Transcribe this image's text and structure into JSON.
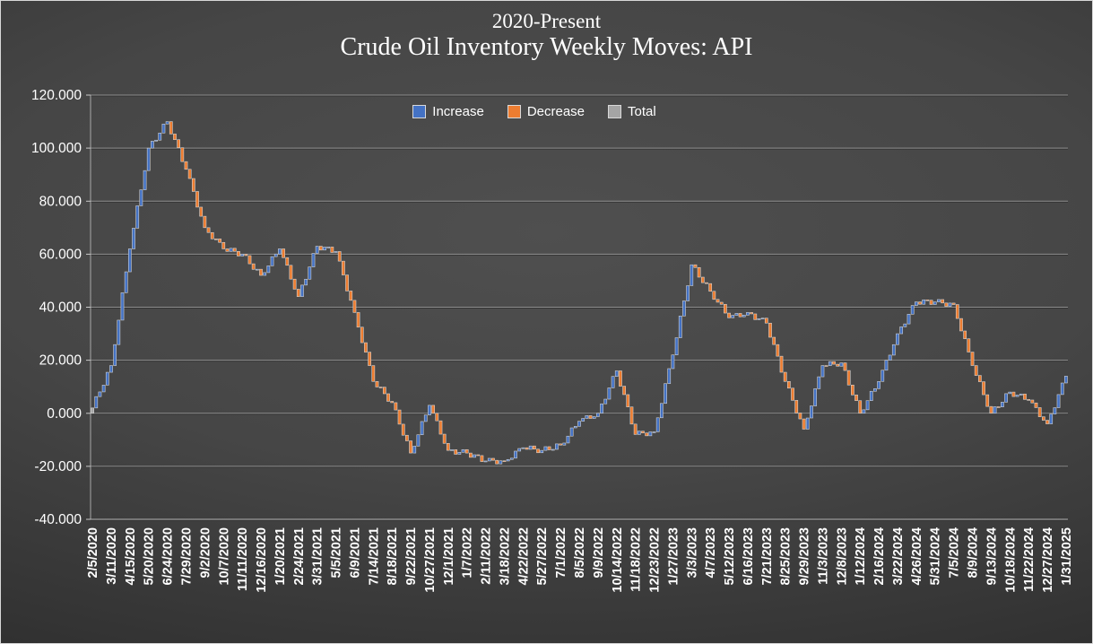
{
  "title": {
    "line1": "2020-Present",
    "line2": "Crude Oil Inventory Weekly Moves: API"
  },
  "legend": [
    {
      "label": "Increase",
      "color": "#4472C4"
    },
    {
      "label": "Decrease",
      "color": "#ED7D31"
    },
    {
      "label": "Total",
      "color": "#A5A5A5"
    }
  ],
  "chart_data": {
    "type": "bar",
    "subtype": "waterfall",
    "title": "2020-Present Crude Oil Inventory Weekly Moves: API",
    "grid": true,
    "legend_position": "top-center-inside",
    "legend_entries": [
      "Increase",
      "Decrease",
      "Total"
    ],
    "ylim": [
      -40,
      120
    ],
    "y_tick_values": [
      120,
      100,
      80,
      60,
      40,
      20,
      0,
      -20,
      -40
    ],
    "y_tick_labels": [
      "120.000",
      "100.000",
      "80.000",
      "60.000",
      "40.000",
      "20.000",
      "0.000",
      "-20.000",
      "-40.000"
    ],
    "weeks_per_tick": 5,
    "start_value": 0,
    "x_tick_labels": [
      "2/5/2020",
      "3/11/2020",
      "4/15/2020",
      "5/20/2020",
      "6/24/2020",
      "7/29/2020",
      "9/2/2020",
      "10/7/2020",
      "11/11/2020",
      "12/16/2020",
      "1/20/2021",
      "2/24/2021",
      "3/31/2021",
      "5/5/2021",
      "6/9/2021",
      "7/14/2021",
      "8/18/2021",
      "9/22/2021",
      "10/27/2021",
      "12/1/2021",
      "1/7/2022",
      "2/11/2022",
      "3/18/2022",
      "4/22/2022",
      "5/27/2022",
      "7/1/2022",
      "8/5/2022",
      "9/9/2022",
      "10/14/2022",
      "11/18/2022",
      "12/23/2022",
      "1/27/2023",
      "3/3/2023",
      "4/7/2023",
      "5/12/2023",
      "6/16/2023",
      "7/21/2023",
      "8/25/2023",
      "9/29/2023",
      "11/3/2023",
      "12/8/2023",
      "1/12/2024",
      "2/16/2024",
      "3/22/2024",
      "4/26/2024",
      "5/31/2024",
      "7/5/2024",
      "8/9/2024",
      "9/13/2024",
      "10/18/2024",
      "11/22/2024",
      "12/27/2024",
      "1/31/2025"
    ],
    "cumulative_at_ticks": [
      2,
      18,
      62,
      100,
      110,
      92,
      70,
      62,
      60,
      52,
      62,
      44,
      63,
      61,
      38,
      12,
      4,
      -15,
      3,
      -14,
      -15,
      -18,
      -18,
      -13,
      -14,
      -12,
      -3,
      0,
      16,
      -8,
      -7,
      22,
      56,
      46,
      36,
      38,
      34,
      12,
      -6,
      18,
      19,
      0,
      12,
      30,
      42,
      42,
      41,
      18,
      0,
      8,
      5,
      -4,
      14
    ]
  }
}
